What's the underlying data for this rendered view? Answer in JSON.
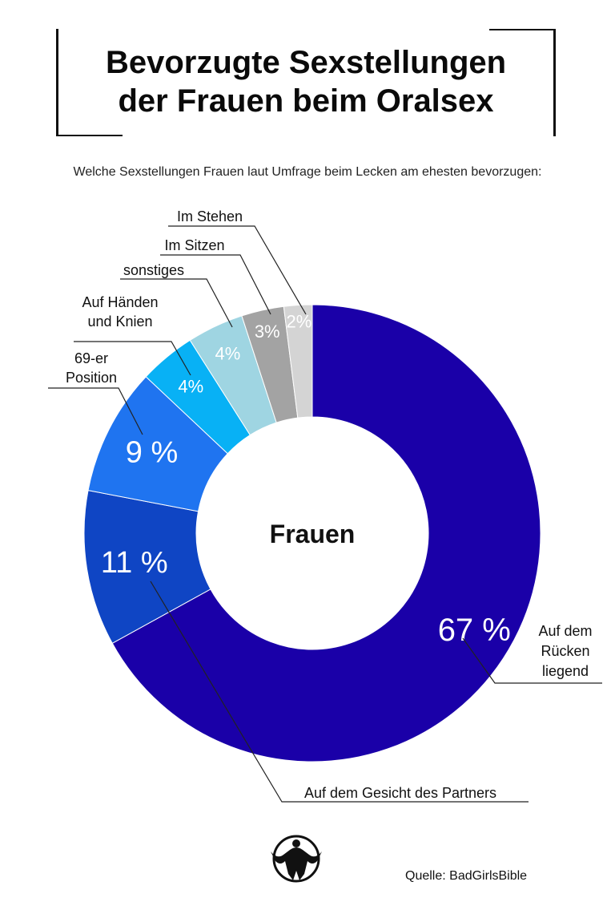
{
  "title_lines": [
    "Bevorzugte Sexstellungen",
    "der Frauen beim Oralsex"
  ],
  "subtitle": "Welche Sexstellungen Frauen laut Umfrage beim Lecken am ehesten bevorzugen:",
  "source": "Quelle: BadGirlsBible",
  "chart_data": {
    "type": "pie",
    "variant": "donut",
    "center_label": "Frauen",
    "unit": "%",
    "slices": [
      {
        "name": "Auf dem Rücken liegend",
        "label_lines": [
          "Auf dem",
          "Rücken",
          "liegend"
        ],
        "value": 67,
        "value_label": "67 %",
        "color": "#1a00a8"
      },
      {
        "name": "Auf dem Gesicht des Partners",
        "label_lines": [
          "Auf dem Gesicht des Partners"
        ],
        "value": 11,
        "value_label": "11 %",
        "color": "#0f45c4"
      },
      {
        "name": "69-er Position",
        "label_lines": [
          "69-er",
          "Position"
        ],
        "value": 9,
        "value_label": "9 %",
        "color": "#1f74f0"
      },
      {
        "name": "Auf Händen und Knien",
        "label_lines": [
          "Auf Händen",
          "und Knien"
        ],
        "value": 4,
        "value_label": "4%",
        "color": "#08b1f5"
      },
      {
        "name": "sonstiges",
        "label_lines": [
          "sonstiges"
        ],
        "value": 4,
        "value_label": "4%",
        "color": "#9fd5e2"
      },
      {
        "name": "Im Sitzen",
        "label_lines": [
          "Im Sitzen"
        ],
        "value": 3,
        "value_label": "3%",
        "color": "#a3a3a3"
      },
      {
        "name": "Im Stehen",
        "label_lines": [
          "Im Stehen"
        ],
        "value": 2,
        "value_label": "2%",
        "color": "#d4d4d4"
      }
    ]
  }
}
